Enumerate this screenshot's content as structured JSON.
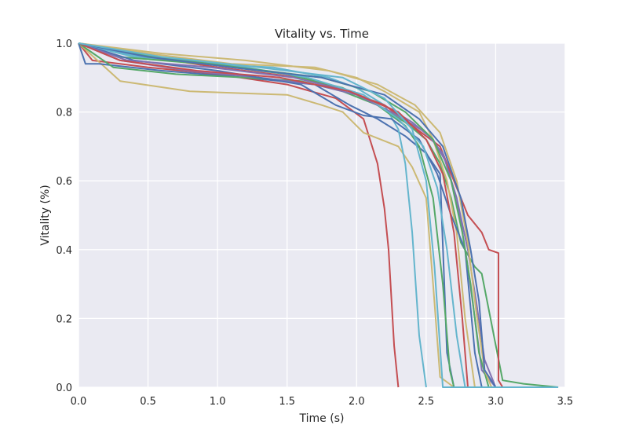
{
  "chart_data": {
    "type": "line",
    "title": "Vitality vs. Time",
    "xlabel": "Time (s)",
    "ylabel": "Vitality (%)",
    "xlim": [
      0.0,
      3.5
    ],
    "ylim": [
      0.0,
      1.0
    ],
    "xticks": [
      "0.0",
      "0.5",
      "1.0",
      "1.5",
      "2.0",
      "2.5",
      "3.0",
      "3.5"
    ],
    "yticks": [
      "0.0",
      "0.2",
      "0.4",
      "0.6",
      "0.8",
      "1.0"
    ],
    "grid": true,
    "background": "#EAEAF2",
    "grid_color": "#FFFFFF",
    "palette": [
      "#4C72B0",
      "#55A868",
      "#C44E52",
      "#8172B2",
      "#CCB974",
      "#64B5CD"
    ],
    "series": [
      {
        "color": "#C44E52",
        "x": [
          0,
          0.1,
          0.5,
          1.0,
          1.5,
          1.85,
          2.05,
          2.15,
          2.2,
          2.23,
          2.27,
          2.3
        ],
        "y": [
          1.0,
          0.95,
          0.93,
          0.91,
          0.88,
          0.84,
          0.78,
          0.65,
          0.52,
          0.4,
          0.12,
          0.0
        ]
      },
      {
        "color": "#CCB974",
        "x": [
          0,
          0.3,
          0.8,
          1.5,
          1.75,
          1.9,
          2.05,
          2.3,
          2.4,
          2.5,
          2.55,
          2.6,
          2.7,
          3.1
        ],
        "y": [
          1.0,
          0.89,
          0.86,
          0.85,
          0.82,
          0.8,
          0.74,
          0.7,
          0.64,
          0.55,
          0.3,
          0.03,
          0.0,
          0.0
        ]
      },
      {
        "color": "#4C72B0",
        "x": [
          0,
          0.05,
          0.15,
          0.6,
          1.2,
          1.7,
          1.95,
          2.15,
          2.35,
          2.5,
          2.6,
          2.65,
          2.7,
          2.8,
          3.0
        ],
        "y": [
          1.0,
          0.94,
          0.94,
          0.92,
          0.9,
          0.88,
          0.82,
          0.78,
          0.73,
          0.68,
          0.62,
          0.1,
          0.0,
          0.0,
          0.0
        ]
      },
      {
        "color": "#55A868",
        "x": [
          0,
          0.25,
          0.7,
          1.2,
          1.6,
          1.9,
          2.15,
          2.35,
          2.5,
          2.6,
          2.68,
          2.75,
          2.85,
          2.9,
          3.05,
          3.2,
          3.45
        ],
        "y": [
          1.0,
          0.93,
          0.91,
          0.9,
          0.89,
          0.86,
          0.82,
          0.77,
          0.72,
          0.65,
          0.55,
          0.42,
          0.35,
          0.33,
          0.02,
          0.01,
          0.0
        ]
      },
      {
        "color": "#8172B2",
        "x": [
          0,
          0.3,
          0.8,
          1.3,
          1.7,
          2.0,
          2.2,
          2.4,
          2.55,
          2.65,
          2.75,
          2.8,
          2.85,
          2.9,
          3.0
        ],
        "y": [
          1.0,
          0.95,
          0.92,
          0.9,
          0.88,
          0.85,
          0.82,
          0.77,
          0.72,
          0.65,
          0.48,
          0.35,
          0.2,
          0.05,
          0.0
        ]
      },
      {
        "color": "#64B5CD",
        "x": [
          0,
          0.4,
          0.9,
          1.4,
          1.8,
          2.0,
          2.2,
          2.3,
          2.35,
          2.4,
          2.45,
          2.5
        ],
        "y": [
          1.0,
          0.96,
          0.94,
          0.93,
          0.9,
          0.87,
          0.82,
          0.75,
          0.65,
          0.45,
          0.15,
          0.0
        ]
      },
      {
        "color": "#C44E52",
        "x": [
          0,
          0.5,
          1.0,
          1.6,
          1.95,
          2.2,
          2.4,
          2.6,
          2.7,
          2.8,
          2.9,
          2.95,
          3.02,
          3.02,
          3.05,
          3.3
        ],
        "y": [
          1.0,
          0.96,
          0.93,
          0.9,
          0.86,
          0.82,
          0.76,
          0.7,
          0.6,
          0.5,
          0.45,
          0.4,
          0.39,
          0.02,
          0.0,
          0.0
        ]
      },
      {
        "color": "#55A868",
        "x": [
          0,
          0.3,
          0.9,
          1.5,
          1.9,
          2.15,
          2.35,
          2.45,
          2.55,
          2.62,
          2.67,
          2.7
        ],
        "y": [
          1.0,
          0.96,
          0.94,
          0.91,
          0.87,
          0.82,
          0.76,
          0.7,
          0.55,
          0.3,
          0.05,
          0.0
        ]
      },
      {
        "color": "#CCB974",
        "x": [
          0,
          0.5,
          1.1,
          1.7,
          2.0,
          2.2,
          2.45,
          2.55,
          2.65,
          2.72,
          2.78,
          2.85
        ],
        "y": [
          1.0,
          0.97,
          0.94,
          0.93,
          0.9,
          0.86,
          0.8,
          0.72,
          0.6,
          0.45,
          0.2,
          0.0
        ]
      },
      {
        "color": "#4C72B0",
        "x": [
          0,
          0.4,
          1.0,
          1.6,
          1.85,
          2.05,
          2.25,
          2.45,
          2.58,
          2.68,
          2.78,
          2.85,
          2.9
        ],
        "y": [
          1.0,
          0.95,
          0.92,
          0.88,
          0.82,
          0.79,
          0.78,
          0.72,
          0.62,
          0.5,
          0.4,
          0.1,
          0.0
        ]
      },
      {
        "color": "#8172B2",
        "x": [
          0,
          0.35,
          0.95,
          1.55,
          1.95,
          2.25,
          2.5,
          2.62,
          2.72,
          2.8,
          2.86,
          2.92,
          3.0
        ],
        "y": [
          1.0,
          0.95,
          0.93,
          0.9,
          0.86,
          0.8,
          0.74,
          0.68,
          0.55,
          0.4,
          0.25,
          0.08,
          0.0
        ]
      },
      {
        "color": "#64B5CD",
        "x": [
          0,
          0.45,
          1.05,
          1.65,
          2.05,
          2.3,
          2.48,
          2.58,
          2.65,
          2.72,
          2.78
        ],
        "y": [
          1.0,
          0.96,
          0.94,
          0.9,
          0.85,
          0.78,
          0.7,
          0.58,
          0.4,
          0.15,
          0.0
        ]
      },
      {
        "color": "#55A868",
        "x": [
          0,
          0.55,
          1.15,
          1.75,
          2.1,
          2.35,
          2.55,
          2.68,
          2.76,
          2.82,
          2.88,
          2.95,
          3.3
        ],
        "y": [
          1.0,
          0.96,
          0.93,
          0.9,
          0.86,
          0.8,
          0.72,
          0.6,
          0.45,
          0.3,
          0.1,
          0.0,
          0.0
        ]
      },
      {
        "color": "#CCB974",
        "x": [
          0,
          0.6,
          1.2,
          1.8,
          2.15,
          2.42,
          2.6,
          2.72,
          2.8,
          2.86,
          2.92,
          2.97
        ],
        "y": [
          1.0,
          0.97,
          0.95,
          0.92,
          0.88,
          0.82,
          0.74,
          0.6,
          0.42,
          0.22,
          0.05,
          0.0
        ]
      },
      {
        "color": "#C44E52",
        "x": [
          0,
          0.3,
          0.85,
          1.45,
          1.95,
          2.3,
          2.5,
          2.62,
          2.7,
          2.76,
          2.8
        ],
        "y": [
          1.0,
          0.95,
          0.92,
          0.9,
          0.86,
          0.8,
          0.72,
          0.62,
          0.45,
          0.2,
          0.0
        ]
      },
      {
        "color": "#4C72B0",
        "x": [
          0,
          0.5,
          1.1,
          1.75,
          2.2,
          2.45,
          2.62,
          2.75,
          2.82,
          2.88,
          2.92,
          3.0
        ],
        "y": [
          1.0,
          0.96,
          0.93,
          0.9,
          0.85,
          0.78,
          0.7,
          0.55,
          0.4,
          0.25,
          0.05,
          0.0
        ]
      },
      {
        "color": "#64B5CD",
        "x": [
          0,
          0.6,
          1.3,
          1.9,
          2.2,
          2.4,
          2.5,
          2.56,
          2.62,
          3.45
        ],
        "y": [
          1.0,
          0.96,
          0.93,
          0.9,
          0.84,
          0.75,
          0.6,
          0.35,
          0.0,
          0.0
        ]
      }
    ]
  }
}
